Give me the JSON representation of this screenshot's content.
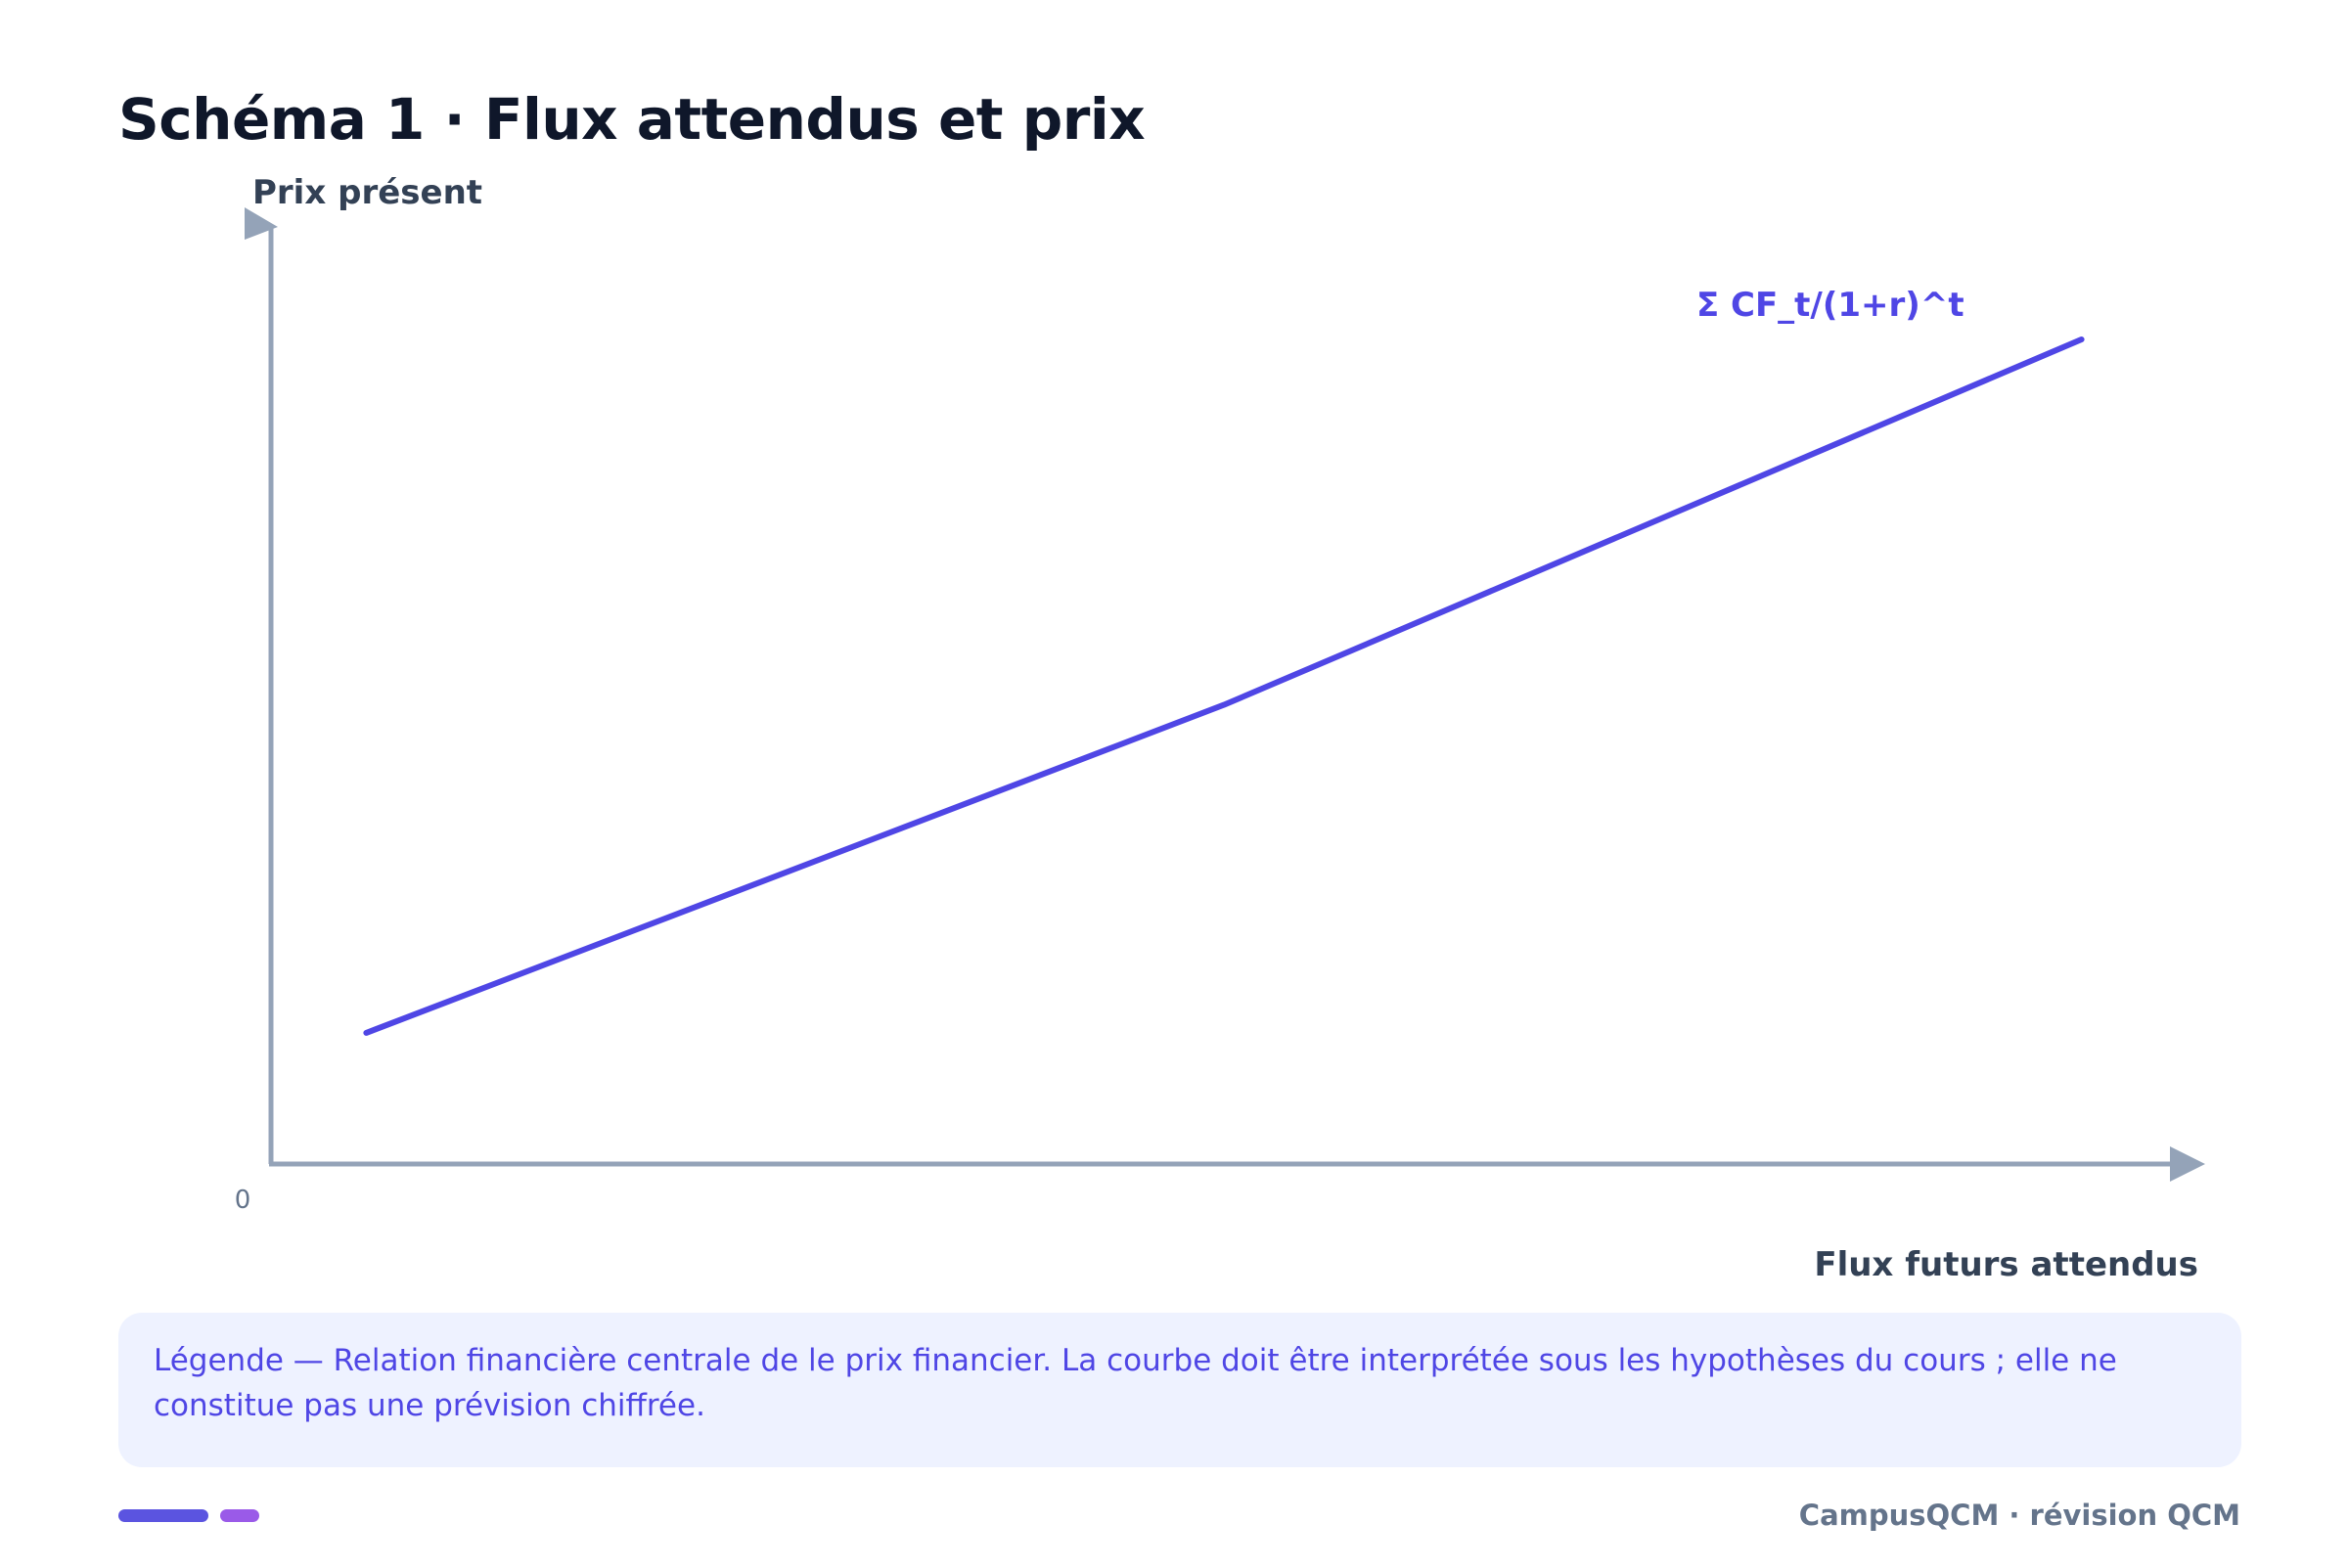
{
  "page": {
    "title": "Schéma 1 · Flux attendus et prix",
    "legend": "Légende — Relation financière centrale de le prix financier. La courbe doit être interprétée sous les hypothèses du cours ; elle ne constitue pas une prévision chiffrée.",
    "footer": "CampusQCM · révision QCM"
  },
  "chart_data": {
    "type": "line",
    "ylabel": "Prix présent",
    "xlabel": "Flux futurs attendus",
    "origin_label": "0",
    "xlim": [
      0,
      100
    ],
    "ylim": [
      0,
      100
    ],
    "series": [
      {
        "name": "Σ CF_t/(1+r)^t",
        "color": "#4f46e5",
        "x": [
          5,
          50,
          95
        ],
        "y": [
          14,
          49,
          88
        ]
      }
    ]
  },
  "colors": {
    "axis": "#94a3b8",
    "accent": "#4f46e5",
    "legend_bg": "#eef2ff"
  }
}
